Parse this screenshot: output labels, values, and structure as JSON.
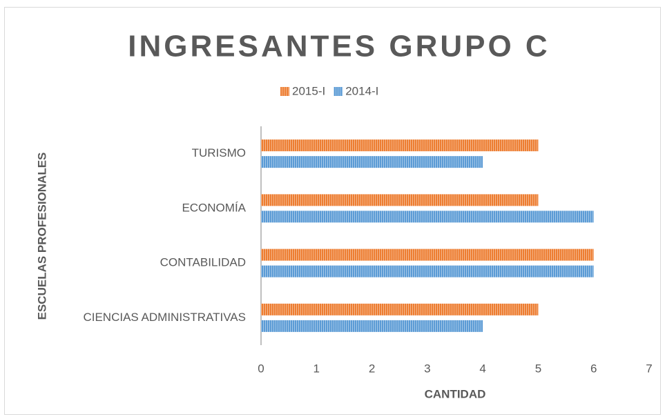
{
  "chart_data": {
    "type": "barh",
    "title": "INGRESANTES GRUPO C",
    "categories": [
      "CIENCIAS ADMINISTRATIVAS",
      "CONTABILIDAD",
      "ECONOMÍA",
      "TURISMO"
    ],
    "series": [
      {
        "name": "2015-I",
        "color": "#ed7d31",
        "values": [
          5,
          6,
          5,
          5
        ]
      },
      {
        "name": "2014-I",
        "color": "#5b9bd5",
        "values": [
          4,
          6,
          6,
          4
        ]
      }
    ],
    "xlim": [
      0,
      7
    ],
    "xticks": [
      0,
      1,
      2,
      3,
      4,
      5,
      6,
      7
    ],
    "xlabel": "CANTIDAD",
    "ylabel": "ESCUELAS PROFESIONALES",
    "legend": "top",
    "grid": false
  }
}
